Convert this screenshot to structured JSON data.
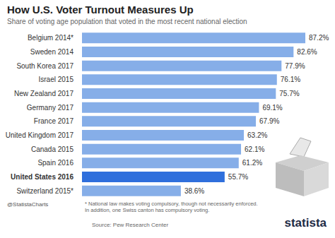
{
  "chart_data": {
    "type": "bar",
    "orientation": "horizontal",
    "title": "How U.S. Voter Turnout Measures Up",
    "subtitle": "Share of voting age population that voted in the most recent national election",
    "categories": [
      "Belgium 2014*",
      "Sweden 2014",
      "South Korea 2017",
      "Israel 2015",
      "New Zealand 2017",
      "Germany 2017",
      "France 2017",
      "United Kingdom 2017",
      "Canada 2015",
      "Spain 2016",
      "United States 2016",
      "Switzerland 2015*"
    ],
    "values": [
      87.2,
      82.6,
      77.9,
      76.1,
      75.7,
      69.1,
      67.9,
      63.2,
      62.1,
      61.2,
      55.7,
      38.6
    ],
    "value_labels": [
      "87.2%",
      "82.6%",
      "77.9%",
      "76.1%",
      "75.7%",
      "69.1%",
      "67.9%",
      "63.2%",
      "62.1%",
      "61.2%",
      "55.7%",
      "38.6%"
    ],
    "colors": [
      "#86aee8",
      "#86aee8",
      "#86aee8",
      "#86aee8",
      "#86aee8",
      "#86aee8",
      "#86aee8",
      "#86aee8",
      "#86aee8",
      "#86aee8",
      "#2f6fdc",
      "#86aee8"
    ],
    "data_labels": true,
    "tick_labels": false,
    "grid": false,
    "footnote": "* National law makes voting compulsory, though not necessarily enforced. In addition, one Swiss canton has compulsory voting.",
    "source": "Source: Pew Research Center",
    "credit": "@StatistaCharts",
    "brand": "statista"
  }
}
